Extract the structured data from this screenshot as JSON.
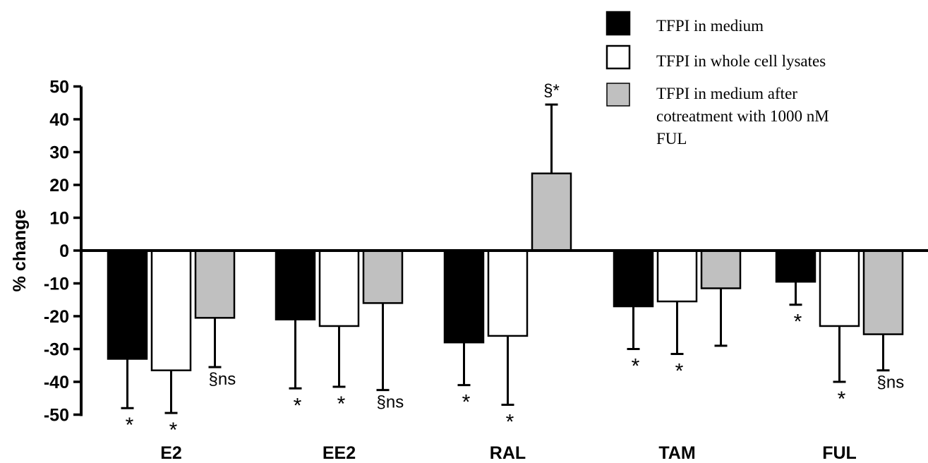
{
  "chart_data": {
    "type": "bar",
    "ylabel": "% change",
    "xlabel": "",
    "ylim": [
      -50,
      50
    ],
    "yticks": [
      "50",
      "40",
      "30",
      "20",
      "10",
      "0",
      "-10",
      "-20",
      "-30",
      "-40",
      "-50"
    ],
    "categories": [
      "E2",
      "EE2",
      "RAL",
      "TAM",
      "FUL"
    ],
    "legend_position": "top-right",
    "series": [
      {
        "name": "TFPI in medium",
        "color": "#000000",
        "values": [
          -33,
          -21,
          -28,
          -17,
          -9.5
        ],
        "errors": [
          15,
          21,
          13,
          13,
          7
        ],
        "annotations": [
          "*",
          "*",
          "*",
          "*",
          "*"
        ]
      },
      {
        "name": "TFPI in whole cell lysates",
        "color": "#ffffff",
        "values": [
          -36.5,
          -23,
          -26,
          -15.5,
          -23
        ],
        "errors": [
          13,
          18.5,
          21,
          16,
          17
        ],
        "annotations": [
          "*",
          "*",
          "*",
          "*",
          "*"
        ]
      },
      {
        "name": "TFPI in medium after cotreatment with 1000 nM FUL",
        "color": "#c0c0c0",
        "values": [
          -20.5,
          -16,
          23.5,
          -11.5,
          -25.5
        ],
        "errors": [
          15,
          26.5,
          21,
          17.5,
          11
        ],
        "annotations": [
          "§ns",
          "§ns",
          "§*",
          "",
          "§ns"
        ]
      }
    ]
  },
  "legend_lines": [
    [
      "TFPI in medium"
    ],
    [
      "TFPI in whole cell lysates"
    ],
    [
      "TFPI in medium after",
      "cotreatment with 1000 nM",
      "FUL"
    ]
  ]
}
